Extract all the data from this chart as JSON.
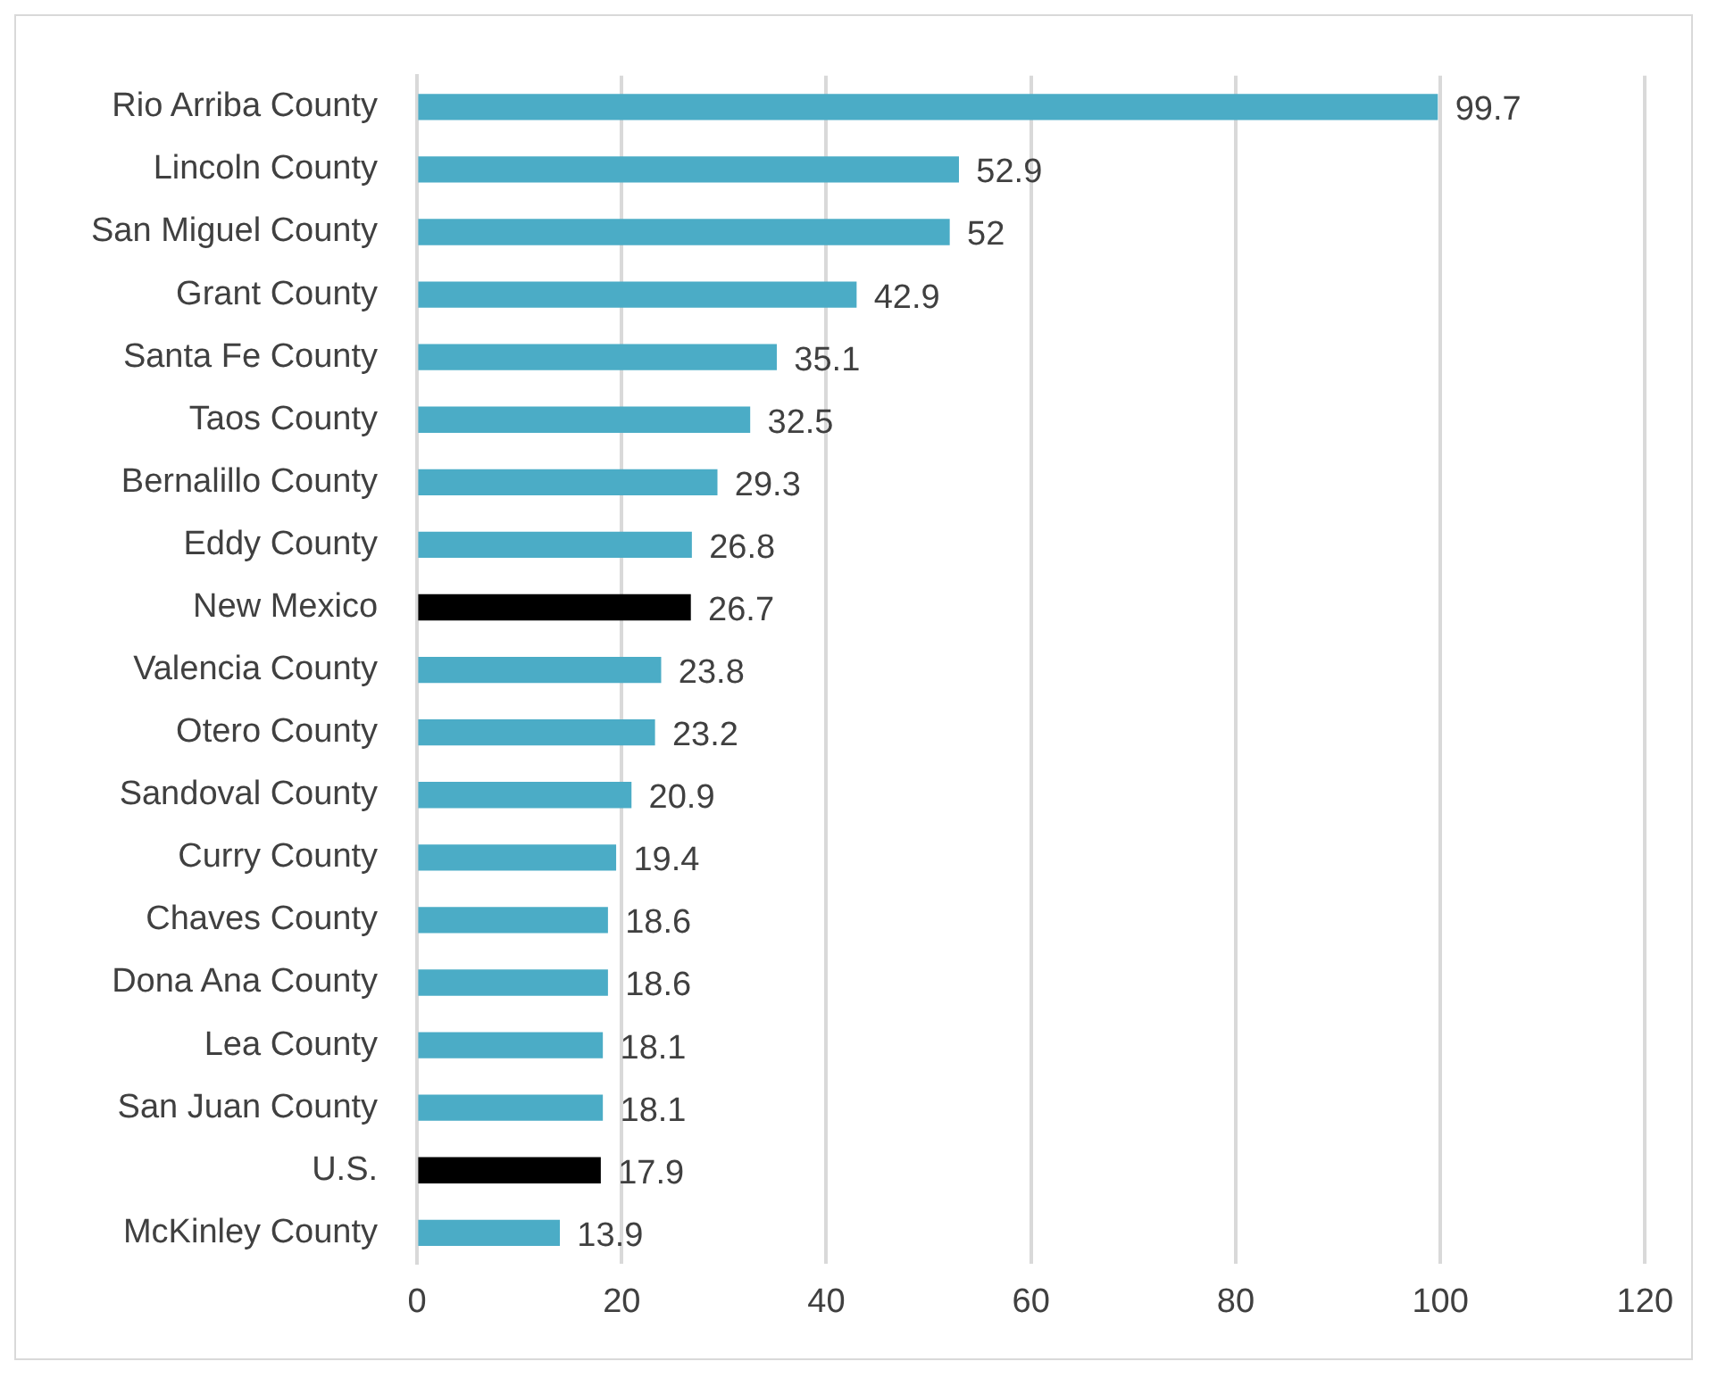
{
  "chart_data": {
    "type": "bar",
    "orientation": "horizontal",
    "categories": [
      "Rio Arriba County",
      "Lincoln County",
      "San Miguel County",
      "Grant County",
      "Santa Fe County",
      "Taos County",
      "Bernalillo County",
      "Eddy County",
      "New Mexico",
      "Valencia County",
      "Otero County",
      "Sandoval County",
      "Curry County",
      "Chaves County",
      "Dona Ana County",
      "Lea County",
      "San Juan County",
      "U.S.",
      "McKinley County"
    ],
    "values": [
      99.7,
      52.9,
      52,
      42.9,
      35.1,
      32.5,
      29.3,
      26.8,
      26.7,
      23.8,
      23.2,
      20.9,
      19.4,
      18.6,
      18.6,
      18.1,
      18.1,
      17.9,
      13.9
    ],
    "colors": [
      "#4bacc6",
      "#4bacc6",
      "#4bacc6",
      "#4bacc6",
      "#4bacc6",
      "#4bacc6",
      "#4bacc6",
      "#4bacc6",
      "#000000",
      "#4bacc6",
      "#4bacc6",
      "#4bacc6",
      "#4bacc6",
      "#4bacc6",
      "#4bacc6",
      "#4bacc6",
      "#4bacc6",
      "#000000",
      "#4bacc6"
    ],
    "xlim": [
      0,
      120
    ],
    "xticks": [
      0,
      20,
      40,
      60,
      80,
      100,
      120
    ],
    "grid": "x",
    "legend": false,
    "data_labels": true
  }
}
